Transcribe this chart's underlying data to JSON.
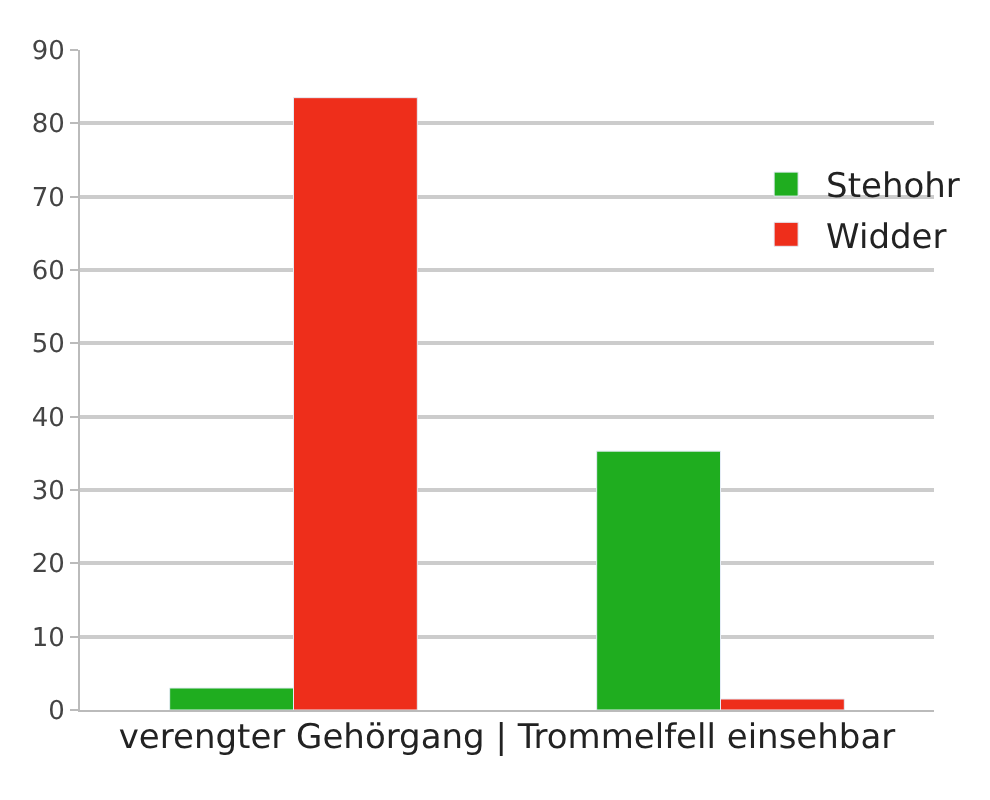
{
  "chart_data": {
    "type": "bar",
    "xlabel": "verengter Gehörgang | Trommelfell einsehbar",
    "categories": [
      null,
      null
    ],
    "series": [
      {
        "name": "Stehohr",
        "color": "#1fad1f",
        "values": [
          3,
          35.3
        ]
      },
      {
        "name": "Widder",
        "color": "#ee2e1b",
        "values": [
          83.5,
          1.5
        ]
      }
    ],
    "ylim": [
      0,
      90
    ],
    "yticks": [
      0,
      10,
      20,
      30,
      40,
      50,
      60,
      70,
      80,
      90
    ],
    "grid": "y",
    "legend": "top right"
  }
}
